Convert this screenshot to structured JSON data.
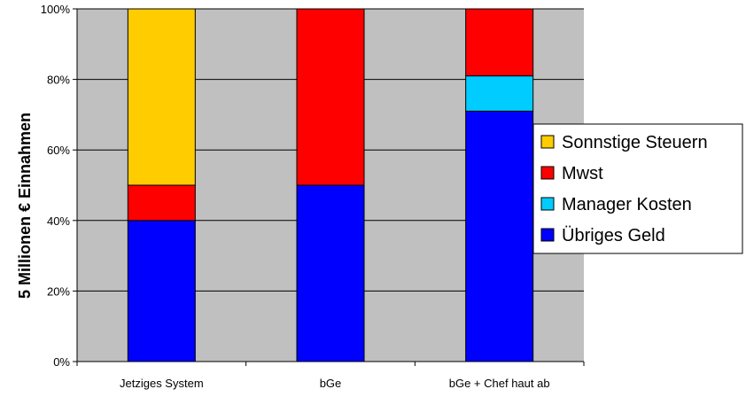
{
  "chart_data": {
    "type": "bar",
    "stacked": true,
    "percent": true,
    "categories": [
      "Jetziges System",
      "bGe",
      "bGe + Chef haut ab"
    ],
    "series": [
      {
        "name": "Übriges Geld",
        "color": "#0000ff",
        "values": [
          40,
          50,
          71
        ]
      },
      {
        "name": "Manager Kosten",
        "color": "#00ccff",
        "values": [
          0,
          0,
          10
        ]
      },
      {
        "name": "Mwst",
        "color": "#ff0000",
        "values": [
          10,
          50,
          19
        ]
      },
      {
        "name": "Sonnstige Steuern",
        "color": "#ffcc00",
        "values": [
          50,
          0,
          0
        ]
      }
    ],
    "ylabel": "5 Millionen € Einnahmen",
    "ylim": [
      0,
      100
    ],
    "yticks": [
      "0%",
      "20%",
      "40%",
      "60%",
      "80%",
      "100%"
    ],
    "grid": true,
    "plot_background": "#c0c0c0",
    "legend_position": "right",
    "legend_order": [
      "Sonnstige Steuern",
      "Mwst",
      "Manager Kosten",
      "Übriges Geld"
    ]
  }
}
